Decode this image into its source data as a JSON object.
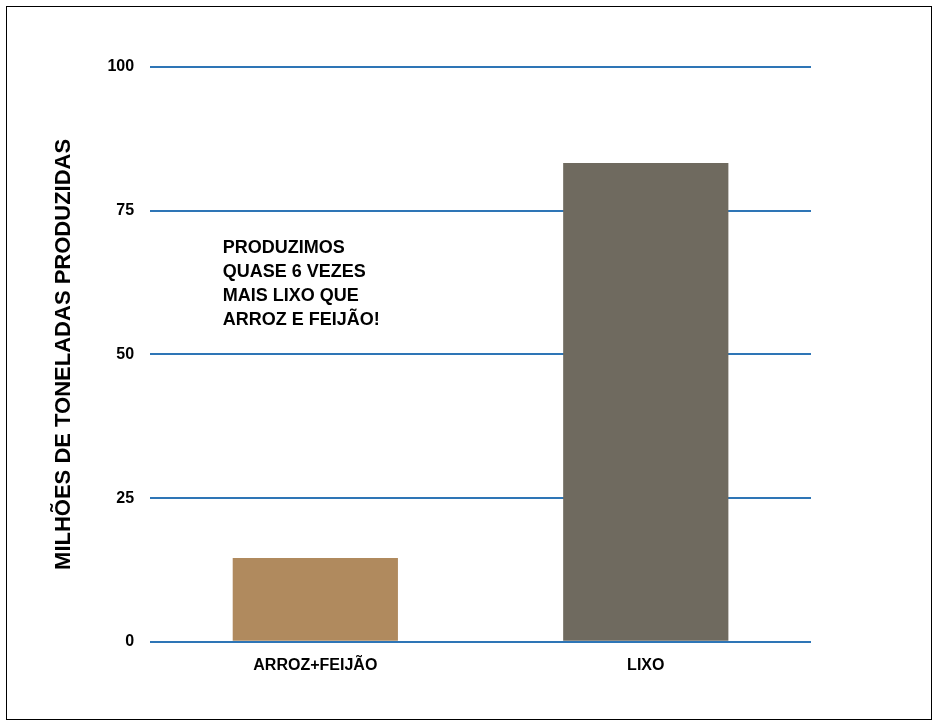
{
  "chart_data": {
    "type": "bar",
    "categories": [
      "ARROZ+FEIJÃO",
      "LIXO"
    ],
    "values": [
      14.6,
      83.3
    ],
    "colors": [
      "#b08a5e",
      "#6f6a5f"
    ],
    "y_label": "MILHÕES DE TONELADAS PRODUZIDAS",
    "annotation": [
      "PRODUZIMOS",
      "QUASE 6 VEZES",
      "MAIS LIXO QUE",
      "ARROZ E FEIJÃO!"
    ],
    "ylim": [
      0,
      100
    ],
    "yticks": [
      0,
      25,
      50,
      75,
      100
    ],
    "grid": true
  }
}
